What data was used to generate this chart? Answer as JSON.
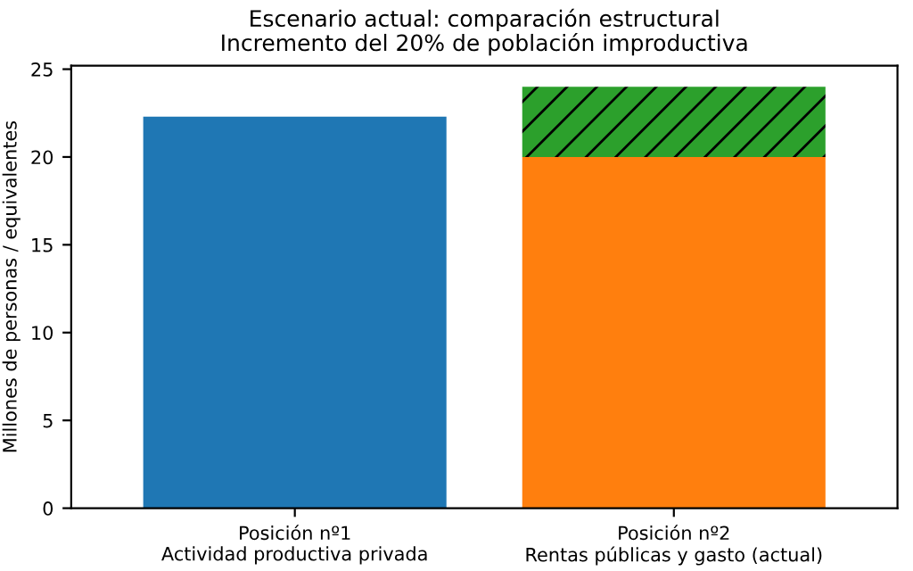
{
  "chart_data": {
    "type": "bar",
    "title": "Escenario actual: comparación estructural\nIncremento del 20% de población improductiva",
    "ylabel": "Millones de personas / equivalentes",
    "categories": [
      "Posición nº1\nActividad productiva privada",
      "Posición nº2\nRentas públicas y gasto (actual)"
    ],
    "stacked": true,
    "series": [
      {
        "colors": [
          "#1f77b4",
          "#ff7f0e"
        ],
        "values": [
          22.3,
          20.0
        ]
      },
      {
        "color": "#2ca02c",
        "values": [
          null,
          4.0
        ]
      }
    ],
    "ylim": [
      0,
      25.2
    ],
    "yticks": [
      0,
      5,
      10,
      15,
      20,
      25
    ],
    "grid": false,
    "legend": false
  }
}
